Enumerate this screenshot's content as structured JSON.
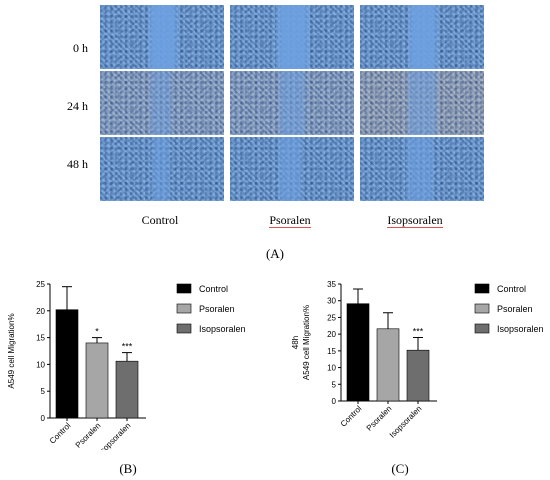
{
  "figure": {
    "row_labels": [
      "0 h",
      "24 h",
      "48 h"
    ],
    "col_labels": [
      "Control",
      "Psoralen",
      "Isopsoralen"
    ],
    "panel_labels": {
      "a": "(A)",
      "b": "(B)",
      "c": "(C)"
    }
  },
  "chart_data": [
    {
      "type": "bar",
      "title": "",
      "xlabel": "",
      "ylabel": "A549 cell Migration%",
      "categories": [
        "Control",
        "Psoralen",
        "Isopsoralen"
      ],
      "values": [
        20.2,
        14.0,
        10.6
      ],
      "errors": [
        4.3,
        1.0,
        1.6
      ],
      "significance": [
        "",
        "*",
        "***"
      ],
      "colors": [
        "#000000",
        "#a6a6a6",
        "#6e6e6e"
      ],
      "ylim": [
        0,
        25
      ],
      "yticks": [
        0,
        5,
        10,
        15,
        20,
        25
      ],
      "legend": [
        "Control",
        "Psoralen",
        "Isopsoralen"
      ],
      "legend_position": "right"
    },
    {
      "type": "bar",
      "title": "48h",
      "xlabel": "",
      "ylabel": "A549 cell Migration%",
      "categories": [
        "Control",
        "Psoralen",
        "Isopsoralen"
      ],
      "values": [
        29.1,
        21.6,
        15.2
      ],
      "errors": [
        4.4,
        4.8,
        3.8
      ],
      "significance": [
        "",
        "",
        "***"
      ],
      "colors": [
        "#000000",
        "#a6a6a6",
        "#6e6e6e"
      ],
      "ylim": [
        0,
        35
      ],
      "yticks": [
        0,
        5,
        10,
        15,
        20,
        25,
        30,
        35
      ],
      "legend": [
        "Control",
        "Psoralen",
        "Isopsoralen"
      ],
      "legend_position": "right"
    }
  ]
}
